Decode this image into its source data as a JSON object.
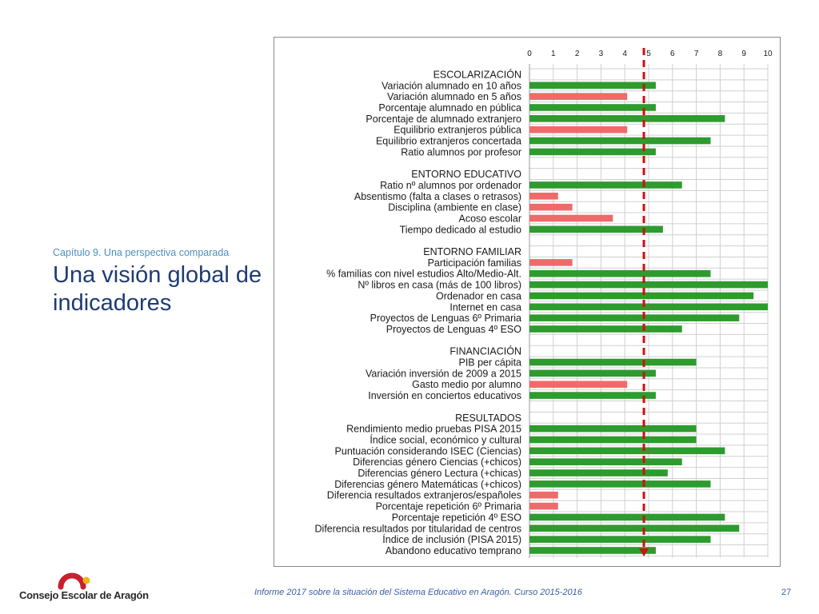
{
  "slide": {
    "subtitle": "Capítulo 9. Una perspectiva comparada",
    "title": "Una visión global de indicadores",
    "logo_text": "Consejo Escolar de Aragón",
    "footer": "Informe 2017 sobre la situación del Sistema Educativo en Aragón. Curso 2015-2016",
    "page_number": "27"
  },
  "colors": {
    "good": "#2e9b2e",
    "bad": "#f06a6a",
    "reference_line": "#cc1111",
    "grid": "#d0d0d0",
    "title": "#1f3b73",
    "logo_red": "#c8202f",
    "logo_yellow": "#f2b21b"
  },
  "chart_data": {
    "type": "bar",
    "orientation": "horizontal",
    "xlim": [
      0,
      10
    ],
    "xticks": [
      "0",
      "1",
      "2",
      "3",
      "4",
      "5",
      "6",
      "7",
      "8",
      "9",
      "10"
    ],
    "grid": true,
    "reference_line": 4.8,
    "rows": [
      {
        "label": "ESCOLARIZACIÓN",
        "header": true
      },
      {
        "label": "Variación alumnado en 10 años",
        "value": 5.3,
        "status": "good"
      },
      {
        "label": "Variación alumnado en 5 años",
        "value": 4.1,
        "status": "bad"
      },
      {
        "label": "Porcentaje alumnado en pública",
        "value": 5.3,
        "status": "good"
      },
      {
        "label": "Porcentaje de alumnado extranjero",
        "value": 8.2,
        "status": "good"
      },
      {
        "label": "Equilibrio extranjeros pública",
        "value": 4.1,
        "status": "bad"
      },
      {
        "label": "Equilibrio extranjeros concertada",
        "value": 7.6,
        "status": "good"
      },
      {
        "label": "Ratio alumnos por profesor",
        "value": 5.3,
        "status": "good"
      },
      {
        "label": "",
        "spacer": true
      },
      {
        "label": "ENTORNO EDUCATIVO",
        "header": true
      },
      {
        "label": "Ratio nº alumnos por ordenador",
        "value": 6.4,
        "status": "good"
      },
      {
        "label": "Absentismo  (falta a clases o retrasos)",
        "value": 1.2,
        "status": "bad"
      },
      {
        "label": "Disciplina (ambiente en clase)",
        "value": 1.8,
        "status": "bad"
      },
      {
        "label": "Acoso escolar",
        "value": 3.5,
        "status": "bad"
      },
      {
        "label": "Tiempo dedicado al estudio",
        "value": 5.6,
        "status": "good"
      },
      {
        "label": "",
        "spacer": true
      },
      {
        "label": "ENTORNO FAMILIAR",
        "header": true
      },
      {
        "label": "Participación familias",
        "value": 1.8,
        "status": "bad"
      },
      {
        "label": "% familias con nivel  estudios   Alto/Medio-Alt.",
        "value": 7.6,
        "status": "good"
      },
      {
        "label": "Nº libros en casa (más de 100 libros)",
        "value": 10.0,
        "status": "good"
      },
      {
        "label": "Ordenador en casa",
        "value": 9.4,
        "status": "good"
      },
      {
        "label": "Internet en casa",
        "value": 10.0,
        "status": "good"
      },
      {
        "label": "Proyectos de Lenguas 6º Primaria",
        "value": 8.8,
        "status": "good"
      },
      {
        "label": "Proyectos de Lenguas 4º ESO",
        "value": 6.4,
        "status": "good"
      },
      {
        "label": "",
        "spacer": true
      },
      {
        "label": "FINANCIACIÓN",
        "header": true
      },
      {
        "label": "PIB per cápita",
        "value": 7.0,
        "status": "good"
      },
      {
        "label": "Variación inversión de 2009 a 2015",
        "value": 5.3,
        "status": "good"
      },
      {
        "label": "Gasto medio por alumno",
        "value": 4.1,
        "status": "bad"
      },
      {
        "label": "Inversión en conciertos educativos",
        "value": 5.3,
        "status": "good"
      },
      {
        "label": "",
        "spacer": true
      },
      {
        "label": "RESULTADOS",
        "header": true
      },
      {
        "label": "Rendimiento medio pruebas  PISA 2015",
        "value": 7.0,
        "status": "good"
      },
      {
        "label": "Índice social, económico y cultural",
        "value": 7.0,
        "status": "good"
      },
      {
        "label": "Puntuación considerando  ISEC (Ciencias)",
        "value": 8.2,
        "status": "good"
      },
      {
        "label": "Diferencias  género Ciencias (+chicos)",
        "value": 6.4,
        "status": "good"
      },
      {
        "label": "Diferencias  género Lectura (+chicas)",
        "value": 5.8,
        "status": "good"
      },
      {
        "label": "Diferencias  género Matemáticas (+chicos)",
        "value": 7.6,
        "status": "good"
      },
      {
        "label": "Diferencia resultados extranjeros/españoles",
        "value": 1.2,
        "status": "bad"
      },
      {
        "label": "Porcentaje repetición  6º Primaria",
        "value": 1.2,
        "status": "bad"
      },
      {
        "label": "Porcentaje repetición  4º ESO",
        "value": 8.2,
        "status": "good"
      },
      {
        "label": "Diferencia resultados por titularidad de centros",
        "value": 8.8,
        "status": "good"
      },
      {
        "label": "Índice de inclusión  (PISA 2015)",
        "value": 7.6,
        "status": "good"
      },
      {
        "label": "Abandono educativo temprano",
        "value": 5.3,
        "status": "good"
      }
    ]
  }
}
